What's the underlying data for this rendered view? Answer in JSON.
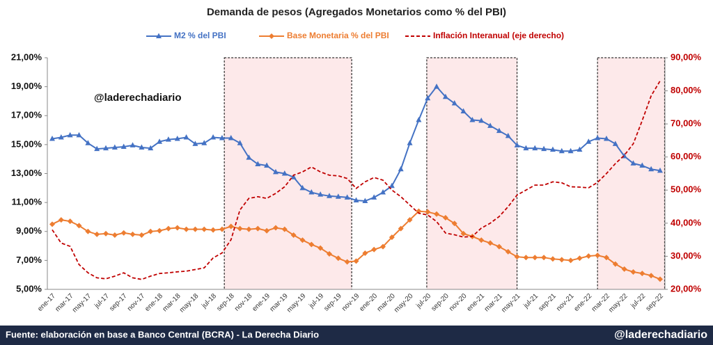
{
  "chart_data": {
    "type": "line",
    "title": "Demanda de pesos (Agregados Monetarios como % del PBI)",
    "watermark": "@laderechadiario",
    "categories": [
      "ene-17",
      null,
      "mar-17",
      null,
      "may-17",
      null,
      "jul-17",
      null,
      "sep-17",
      null,
      "nov-17",
      null,
      "ene-18",
      null,
      "mar-18",
      null,
      "may-18",
      null,
      "jul-18",
      null,
      "sep-18",
      null,
      "nov-18",
      null,
      "ene-19",
      null,
      "mar-19",
      null,
      "may-19",
      null,
      "jul-19",
      null,
      "sep-19",
      null,
      "nov-19",
      null,
      "ene-20",
      null,
      "mar-20",
      null,
      "may-20",
      null,
      "jul-20",
      null,
      "sep-20",
      null,
      "nov-20",
      null,
      "ene-21",
      null,
      "mar-21",
      null,
      "may-21",
      null,
      "jul-21",
      null,
      "sep-21",
      null,
      "nov-21",
      null,
      "ene-22",
      null,
      "mar-22",
      null,
      "may-22",
      null,
      "jul-22",
      null,
      "sep-22"
    ],
    "series": [
      {
        "name": "M2 % del PBI",
        "color": "#4472c4",
        "marker": "triangle",
        "axis": "y",
        "values": [
          15.4,
          15.5,
          15.65,
          15.65,
          15.1,
          14.7,
          14.75,
          14.8,
          14.85,
          14.95,
          14.8,
          14.75,
          15.2,
          15.35,
          15.4,
          15.5,
          15.05,
          15.1,
          15.5,
          15.45,
          15.45,
          15.1,
          14.1,
          13.65,
          13.55,
          13.1,
          13.0,
          12.75,
          12.0,
          11.7,
          11.55,
          11.45,
          11.4,
          11.35,
          11.15,
          11.1,
          11.35,
          11.7,
          12.15,
          13.3,
          15.1,
          16.7,
          18.2,
          19.0,
          18.3,
          17.85,
          17.3,
          16.7,
          16.65,
          16.3,
          15.95,
          15.6,
          14.95,
          14.75,
          14.75,
          14.7,
          14.65,
          14.55,
          14.55,
          14.65,
          15.2,
          15.45,
          15.4,
          15.05,
          14.2,
          13.7,
          13.55,
          13.3,
          13.2
        ]
      },
      {
        "name": "Base Monetaria % del PBI",
        "color": "#ed7d31",
        "marker": "diamond",
        "axis": "y",
        "values": [
          9.5,
          9.8,
          9.7,
          9.4,
          9.0,
          8.8,
          8.85,
          8.75,
          8.9,
          8.8,
          8.75,
          9.0,
          9.05,
          9.2,
          9.25,
          9.15,
          9.15,
          9.15,
          9.1,
          9.15,
          9.35,
          9.2,
          9.15,
          9.2,
          9.05,
          9.25,
          9.15,
          8.75,
          8.4,
          8.1,
          7.85,
          7.45,
          7.15,
          6.9,
          6.95,
          7.5,
          7.75,
          7.95,
          8.6,
          9.2,
          9.8,
          10.4,
          10.35,
          10.2,
          9.95,
          9.55,
          8.85,
          8.65,
          8.4,
          8.2,
          7.95,
          7.6,
          7.25,
          7.2,
          7.2,
          7.2,
          7.1,
          7.05,
          7.0,
          7.15,
          7.3,
          7.35,
          7.2,
          6.75,
          6.4,
          6.2,
          6.1,
          5.95,
          5.7
        ]
      },
      {
        "name": "Inflación Interanual (eje derecho)",
        "color": "#c00000",
        "dashed": true,
        "axis": "y2",
        "values": [
          38,
          34,
          33,
          27.5,
          25,
          23.5,
          23.2,
          24,
          25,
          23.5,
          23,
          24,
          24.8,
          25,
          25.3,
          25.5,
          26,
          26.5,
          29.5,
          31,
          35,
          44,
          47.5,
          48,
          47.5,
          49,
          51,
          54.5,
          55.5,
          57,
          55.5,
          54.5,
          54.3,
          53.5,
          50.5,
          52.5,
          53.8,
          53,
          50,
          48,
          45.5,
          43,
          42.5,
          40.5,
          37,
          36.5,
          35.8,
          36,
          38.5,
          40,
          42,
          45,
          48.5,
          50,
          51.5,
          51.5,
          52.5,
          52.2,
          51,
          50.9,
          50.7,
          52.3,
          55,
          58,
          60.5,
          64,
          71,
          78.5,
          83
        ]
      }
    ],
    "ylim": [
      5,
      21
    ],
    "yticks": [
      {
        "value": 5,
        "label": "5,00%"
      },
      {
        "value": 7,
        "label": "7,00%"
      },
      {
        "value": 9,
        "label": "9,00%"
      },
      {
        "value": 11,
        "label": "11,00%"
      },
      {
        "value": 13,
        "label": "13,00%"
      },
      {
        "value": 15,
        "label": "15,00%"
      },
      {
        "value": 17,
        "label": "17,00%"
      },
      {
        "value": 19,
        "label": "19,00%"
      },
      {
        "value": 21,
        "label": "21,00%"
      }
    ],
    "y2lim": [
      20,
      90
    ],
    "y2ticks": [
      {
        "value": 20,
        "label": "20,00%"
      },
      {
        "value": 30,
        "label": "30,00%"
      },
      {
        "value": 40,
        "label": "40,00%"
      },
      {
        "value": 50,
        "label": "50,00%"
      },
      {
        "value": 60,
        "label": "60,00%"
      },
      {
        "value": 70,
        "label": "70,00%"
      },
      {
        "value": 80,
        "label": "80,00%"
      },
      {
        "value": 90,
        "label": "90,00%"
      }
    ],
    "grid": false,
    "legend": "top"
  },
  "footer": {
    "source": "Fuente: elaboración en base a Banco Central (BCRA) - La Derecha Diario",
    "handle": "@laderechadiario"
  }
}
